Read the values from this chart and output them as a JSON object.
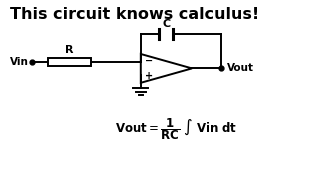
{
  "title": "This circuit knows calculus!",
  "title_fontsize": 11.5,
  "title_fontweight": "bold",
  "bg_color": "#ffffff",
  "line_color": "#000000",
  "line_width": 1.4,
  "vin_label": "Vin",
  "vout_label": "Vout",
  "r_label": "R",
  "c_label": "C",
  "xlim": [
    0,
    10
  ],
  "ylim": [
    0,
    10
  ]
}
